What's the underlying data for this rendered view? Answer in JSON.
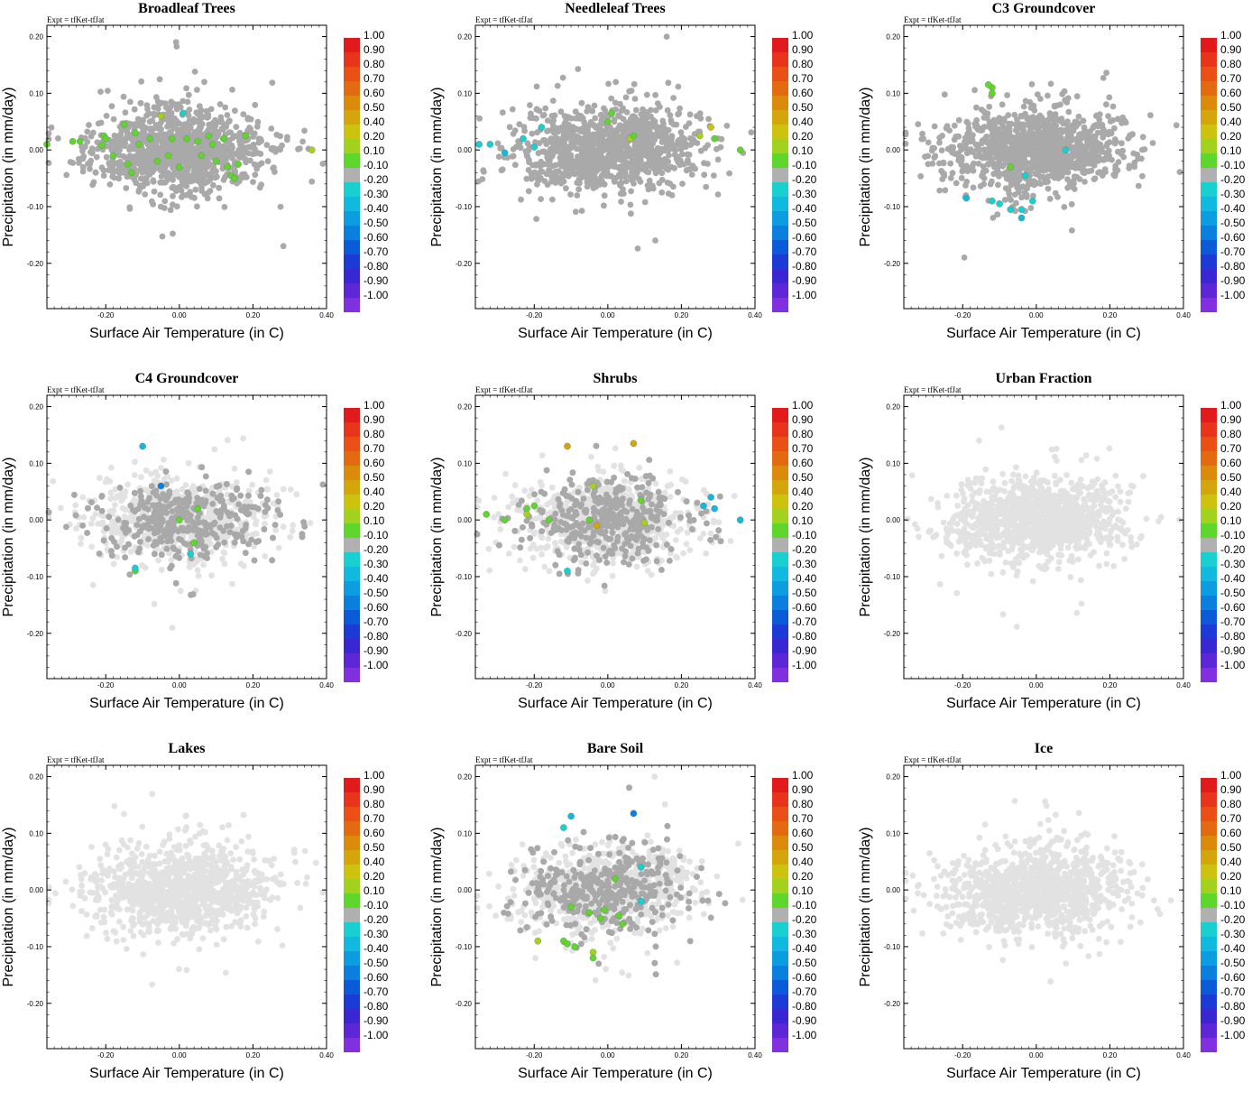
{
  "figure": {
    "experiment_label": "Expt = tfKet-tfJat",
    "xlabel": "Surface Air Temperature (in C)",
    "ylabel": "Precipitation (in mm/day)",
    "x_ticks": [
      "-0.20",
      "0.00",
      "0.20",
      "0.40"
    ],
    "y_ticks": [
      "0.20",
      "0.10",
      "0.00",
      "-0.10",
      "-0.20"
    ],
    "xlim": [
      -0.36,
      0.4
    ],
    "ylim": [
      -0.28,
      0.22
    ],
    "colorbar": {
      "labels": [
        "1.00",
        "0.90",
        "0.80",
        "0.70",
        "0.60",
        "0.50",
        "0.40",
        "0.20",
        "0.10",
        "-0.10",
        "-0.20",
        "-0.30",
        "-0.40",
        "-0.50",
        "-0.60",
        "-0.70",
        "-0.80",
        "-0.90",
        "-1.00"
      ],
      "colors": [
        "#e31a1c",
        "#e8341a",
        "#ea4f16",
        "#e36a10",
        "#dc8a0c",
        "#d5a60b",
        "#cdc20d",
        "#a3d21e",
        "#5fd62b",
        "#b0b0b0",
        "#19d0d0",
        "#12b9de",
        "#0c9de0",
        "#0b7fde",
        "#0b5bd9",
        "#1c3ad6",
        "#3a27d4",
        "#5d26d6",
        "#8130e0"
      ]
    }
  },
  "chart_data": [
    {
      "type": "scatter",
      "title": "Broadleaf Trees",
      "dominant": "dark",
      "colored_points": [
        {
          "x": -0.36,
          "y": 0.01,
          "color": "#5fd62b"
        },
        {
          "x": -0.29,
          "y": 0.015,
          "color": "#5fd62b"
        },
        {
          "x": -0.27,
          "y": 0.015,
          "color": "#5fd62b"
        },
        {
          "x": -0.21,
          "y": 0.008,
          "color": "#5fd62b"
        },
        {
          "x": -0.205,
          "y": 0.025,
          "color": "#5fd62b"
        },
        {
          "x": -0.2,
          "y": 0.02,
          "color": "#5fd62b"
        },
        {
          "x": -0.18,
          "y": -0.01,
          "color": "#5fd62b"
        },
        {
          "x": -0.15,
          "y": 0.045,
          "color": "#5fd62b"
        },
        {
          "x": -0.14,
          "y": -0.025,
          "color": "#5fd62b"
        },
        {
          "x": -0.13,
          "y": -0.04,
          "color": "#5fd62b"
        },
        {
          "x": -0.12,
          "y": 0.03,
          "color": "#5fd62b"
        },
        {
          "x": -0.11,
          "y": 0.01,
          "color": "#5fd62b"
        },
        {
          "x": -0.08,
          "y": 0.02,
          "color": "#5fd62b"
        },
        {
          "x": -0.06,
          "y": -0.02,
          "color": "#5fd62b"
        },
        {
          "x": -0.05,
          "y": 0.06,
          "color": "#a3d21e"
        },
        {
          "x": -0.03,
          "y": -0.01,
          "color": "#5fd62b"
        },
        {
          "x": -0.02,
          "y": 0.02,
          "color": "#5fd62b"
        },
        {
          "x": 0.0,
          "y": -0.03,
          "color": "#5fd62b"
        },
        {
          "x": 0.02,
          "y": 0.02,
          "color": "#5fd62b"
        },
        {
          "x": 0.05,
          "y": 0.015,
          "color": "#5fd62b"
        },
        {
          "x": 0.06,
          "y": -0.01,
          "color": "#5fd62b"
        },
        {
          "x": 0.08,
          "y": 0.025,
          "color": "#5fd62b"
        },
        {
          "x": 0.09,
          "y": 0.01,
          "color": "#5fd62b"
        },
        {
          "x": 0.1,
          "y": -0.02,
          "color": "#5fd62b"
        },
        {
          "x": 0.12,
          "y": 0.02,
          "color": "#5fd62b"
        },
        {
          "x": 0.13,
          "y": -0.03,
          "color": "#5fd62b"
        },
        {
          "x": 0.14,
          "y": -0.045,
          "color": "#5fd62b"
        },
        {
          "x": 0.15,
          "y": -0.05,
          "color": "#5fd62b"
        },
        {
          "x": 0.16,
          "y": -0.025,
          "color": "#5fd62b"
        },
        {
          "x": 0.18,
          "y": 0.025,
          "color": "#5fd62b"
        },
        {
          "x": 0.36,
          "y": 0.0,
          "color": "#a3d21e"
        },
        {
          "x": 0.01,
          "y": 0.065,
          "color": "#19d0d0"
        }
      ]
    },
    {
      "type": "scatter",
      "title": "Needleleaf Trees",
      "dominant": "dark",
      "colored_points": [
        {
          "x": -0.35,
          "y": 0.01,
          "color": "#19d0d0"
        },
        {
          "x": -0.32,
          "y": 0.01,
          "color": "#19d0d0"
        },
        {
          "x": -0.28,
          "y": -0.005,
          "color": "#12b9de"
        },
        {
          "x": -0.23,
          "y": 0.02,
          "color": "#19d0d0"
        },
        {
          "x": -0.2,
          "y": 0.005,
          "color": "#19d0d0"
        },
        {
          "x": -0.18,
          "y": 0.04,
          "color": "#19d0d0"
        },
        {
          "x": 0.0,
          "y": 0.05,
          "color": "#5fd62b"
        },
        {
          "x": 0.01,
          "y": 0.065,
          "color": "#5fd62b"
        },
        {
          "x": 0.06,
          "y": 0.02,
          "color": "#a3d21e"
        },
        {
          "x": 0.07,
          "y": 0.025,
          "color": "#5fd62b"
        },
        {
          "x": 0.25,
          "y": 0.025,
          "color": "#a3d21e"
        },
        {
          "x": 0.28,
          "y": 0.04,
          "color": "#cdc20d"
        },
        {
          "x": 0.29,
          "y": 0.02,
          "color": "#5fd62b"
        },
        {
          "x": 0.36,
          "y": 0.0,
          "color": "#5fd62b"
        }
      ]
    },
    {
      "type": "scatter",
      "title": "C3 Groundcover",
      "dominant": "dark",
      "colored_points": [
        {
          "x": -0.12,
          "y": 0.11,
          "color": "#5fd62b"
        },
        {
          "x": -0.13,
          "y": 0.115,
          "color": "#5fd62b"
        },
        {
          "x": -0.07,
          "y": -0.03,
          "color": "#5fd62b"
        },
        {
          "x": -0.19,
          "y": -0.085,
          "color": "#12b9de"
        },
        {
          "x": -0.12,
          "y": -0.09,
          "color": "#19d0d0"
        },
        {
          "x": -0.1,
          "y": -0.095,
          "color": "#19d0d0"
        },
        {
          "x": -0.07,
          "y": -0.105,
          "color": "#19d0d0"
        },
        {
          "x": -0.04,
          "y": -0.12,
          "color": "#12b9de"
        },
        {
          "x": -0.04,
          "y": -0.105,
          "color": "#19d0d0"
        },
        {
          "x": -0.01,
          "y": -0.09,
          "color": "#19d0d0"
        },
        {
          "x": -0.03,
          "y": -0.045,
          "color": "#19d0d0"
        },
        {
          "x": 0.08,
          "y": 0.0,
          "color": "#19d0d0"
        },
        {
          "x": -0.12,
          "y": 0.1,
          "color": "#5fd62b"
        }
      ]
    },
    {
      "type": "scatter",
      "title": "C4 Groundcover",
      "dominant": "mixed",
      "colored_points": [
        {
          "x": -0.1,
          "y": 0.13,
          "color": "#12b9de"
        },
        {
          "x": -0.05,
          "y": 0.06,
          "color": "#0b7fde"
        },
        {
          "x": 0.0,
          "y": 0.0,
          "color": "#5fd62b"
        },
        {
          "x": 0.05,
          "y": 0.02,
          "color": "#5fd62b"
        },
        {
          "x": 0.04,
          "y": -0.04,
          "color": "#5fd62b"
        },
        {
          "x": -0.12,
          "y": -0.09,
          "color": "#5fd62b"
        },
        {
          "x": -0.12,
          "y": -0.085,
          "color": "#19d0d0"
        },
        {
          "x": 0.03,
          "y": -0.06,
          "color": "#19d0d0"
        }
      ]
    },
    {
      "type": "scatter",
      "title": "Shrubs",
      "dominant": "mixed",
      "colored_points": [
        {
          "x": -0.33,
          "y": 0.01,
          "color": "#5fd62b"
        },
        {
          "x": -0.28,
          "y": 0.0,
          "color": "#5fd62b"
        },
        {
          "x": -0.22,
          "y": 0.02,
          "color": "#5fd62b"
        },
        {
          "x": -0.22,
          "y": 0.01,
          "color": "#a3d21e"
        },
        {
          "x": -0.2,
          "y": 0.025,
          "color": "#5fd62b"
        },
        {
          "x": -0.16,
          "y": 0.0,
          "color": "#5fd62b"
        },
        {
          "x": -0.11,
          "y": 0.13,
          "color": "#d5a60b"
        },
        {
          "x": -0.04,
          "y": 0.06,
          "color": "#a3d21e"
        },
        {
          "x": -0.05,
          "y": 0.0,
          "color": "#5fd62b"
        },
        {
          "x": -0.03,
          "y": -0.01,
          "color": "#d5a60b"
        },
        {
          "x": 0.07,
          "y": 0.135,
          "color": "#d5a60b"
        },
        {
          "x": 0.09,
          "y": 0.035,
          "color": "#5fd62b"
        },
        {
          "x": 0.1,
          "y": -0.005,
          "color": "#a3d21e"
        },
        {
          "x": -0.11,
          "y": -0.09,
          "color": "#19d0d0"
        },
        {
          "x": 0.26,
          "y": 0.025,
          "color": "#12b9de"
        },
        {
          "x": 0.28,
          "y": 0.04,
          "color": "#12b9de"
        },
        {
          "x": 0.29,
          "y": 0.02,
          "color": "#12b9de"
        },
        {
          "x": 0.36,
          "y": 0.0,
          "color": "#12b9de"
        }
      ]
    },
    {
      "type": "scatter",
      "title": "Urban Fraction",
      "dominant": "light",
      "colored_points": []
    },
    {
      "type": "scatter",
      "title": "Lakes",
      "dominant": "light",
      "colored_points": []
    },
    {
      "type": "scatter",
      "title": "Bare Soil",
      "dominant": "mixed",
      "colored_points": [
        {
          "x": -0.1,
          "y": 0.13,
          "color": "#12b9de"
        },
        {
          "x": -0.12,
          "y": 0.11,
          "color": "#19d0d0"
        },
        {
          "x": 0.07,
          "y": 0.135,
          "color": "#0b7fde"
        },
        {
          "x": 0.09,
          "y": 0.04,
          "color": "#19d0d0"
        },
        {
          "x": 0.09,
          "y": -0.02,
          "color": "#19d0d0"
        },
        {
          "x": 0.02,
          "y": 0.02,
          "color": "#5fd62b"
        },
        {
          "x": -0.1,
          "y": -0.03,
          "color": "#5fd62b"
        },
        {
          "x": -0.05,
          "y": -0.04,
          "color": "#5fd62b"
        },
        {
          "x": -0.01,
          "y": -0.035,
          "color": "#5fd62b"
        },
        {
          "x": 0.03,
          "y": -0.045,
          "color": "#5fd62b"
        },
        {
          "x": 0.04,
          "y": -0.06,
          "color": "#5fd62b"
        },
        {
          "x": -0.02,
          "y": -0.05,
          "color": "#5fd62b"
        },
        {
          "x": -0.19,
          "y": -0.09,
          "color": "#a3d21e"
        },
        {
          "x": -0.12,
          "y": -0.09,
          "color": "#5fd62b"
        },
        {
          "x": -0.09,
          "y": -0.1,
          "color": "#5fd62b"
        },
        {
          "x": -0.11,
          "y": -0.095,
          "color": "#5fd62b"
        },
        {
          "x": -0.04,
          "y": -0.11,
          "color": "#a3d21e"
        },
        {
          "x": -0.04,
          "y": -0.12,
          "color": "#5fd62b"
        }
      ]
    },
    {
      "type": "scatter",
      "title": "Ice",
      "dominant": "light",
      "colored_points": []
    }
  ]
}
